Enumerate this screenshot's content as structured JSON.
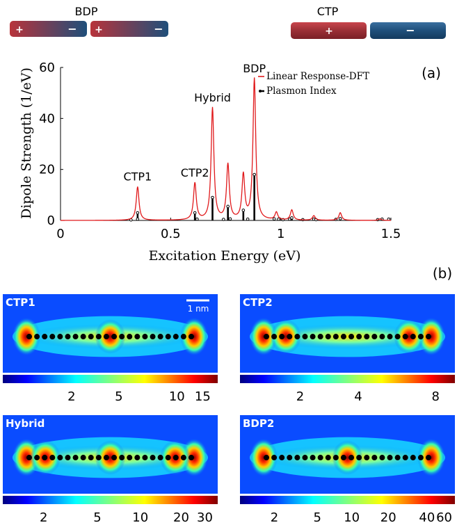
{
  "diagram_labels": {
    "left": "BDP",
    "right": "CTP",
    "plus": "+",
    "minus": "−"
  },
  "panel_labels": {
    "a": "(a)",
    "b": "(b)"
  },
  "chart_data": {
    "type": "line",
    "xlabel": "Excitation Energy (eV)",
    "ylabel": "Dipole Strength (1/eV)",
    "xlim": [
      0,
      1.5
    ],
    "ylim": [
      0,
      60
    ],
    "x_ticks": [
      0,
      0.5,
      1,
      1.5
    ],
    "x_tick_labels": [
      "0",
      "0.5",
      "1",
      "1.5"
    ],
    "y_ticks": [
      0,
      20,
      40,
      60
    ],
    "y_tick_labels": [
      "0",
      "20",
      "40",
      "60"
    ],
    "legend": {
      "placement": "top-right",
      "entries": [
        "Linear Response-DFT",
        "Plasmon Index"
      ]
    },
    "series": [
      {
        "name": "Linear Response-DFT",
        "color": "#e0191b",
        "style": "line",
        "peaks": [
          {
            "x": 0.35,
            "y": 13.2
          },
          {
            "x": 0.61,
            "y": 14.5
          },
          {
            "x": 0.69,
            "y": 44.0
          },
          {
            "x": 0.76,
            "y": 21.7
          },
          {
            "x": 0.83,
            "y": 17.5
          },
          {
            "x": 0.88,
            "y": 55.5
          },
          {
            "x": 0.98,
            "y": 3.0
          },
          {
            "x": 1.05,
            "y": 4.0
          },
          {
            "x": 1.15,
            "y": 1.8
          },
          {
            "x": 1.27,
            "y": 3.0
          },
          {
            "x": 1.45,
            "y": 0.6
          }
        ],
        "peak_width": 0.0075
      },
      {
        "name": "Plasmon Index",
        "color": "#000000",
        "style": "stem",
        "points": [
          {
            "x": 0.32,
            "y": 0.2
          },
          {
            "x": 0.35,
            "y": 3.0
          },
          {
            "x": 0.35,
            "y": 0.5
          },
          {
            "x": 0.61,
            "y": 3.0
          },
          {
            "x": 0.62,
            "y": 0.5
          },
          {
            "x": 0.69,
            "y": 9.0
          },
          {
            "x": 0.74,
            "y": 0.4
          },
          {
            "x": 0.76,
            "y": 5.5
          },
          {
            "x": 0.77,
            "y": 0.6
          },
          {
            "x": 0.83,
            "y": 4.0
          },
          {
            "x": 0.85,
            "y": 0.5
          },
          {
            "x": 0.88,
            "y": 18.0
          },
          {
            "x": 0.97,
            "y": 0.6
          },
          {
            "x": 0.99,
            "y": 0.5
          },
          {
            "x": 1.01,
            "y": 0.3
          },
          {
            "x": 1.04,
            "y": 0.5
          },
          {
            "x": 1.05,
            "y": 1.0
          },
          {
            "x": 1.1,
            "y": 0.3
          },
          {
            "x": 1.15,
            "y": 0.5
          },
          {
            "x": 1.16,
            "y": 0.3
          },
          {
            "x": 1.25,
            "y": 0.4
          },
          {
            "x": 1.27,
            "y": 0.7
          },
          {
            "x": 1.44,
            "y": 0.3
          },
          {
            "x": 1.46,
            "y": 0.5
          },
          {
            "x": 1.49,
            "y": 0.5
          }
        ]
      }
    ],
    "annotations": [
      {
        "text": "CTP1",
        "x": 0.35,
        "y": 14.0
      },
      {
        "text": "CTP2",
        "x": 0.61,
        "y": 15.5
      },
      {
        "text": "Hybrid",
        "x": 0.69,
        "y": 45.0
      },
      {
        "text": "BDP",
        "x": 0.88,
        "y": 56.5
      }
    ]
  },
  "maps": [
    {
      "label": "CTP1",
      "ticks": [
        "2",
        "5",
        "10",
        "15"
      ],
      "tick_pos": [
        0.32,
        0.54,
        0.81,
        0.93
      ],
      "hot": [
        0.5
      ],
      "scale_bar": "1 nm"
    },
    {
      "label": "CTP2",
      "ticks": [
        "2",
        "4",
        "8"
      ],
      "tick_pos": [
        0.28,
        0.55,
        0.91
      ],
      "hot": [
        0.12,
        0.88
      ]
    },
    {
      "label": "Hybrid",
      "ticks": [
        "2",
        "5",
        "10",
        "20",
        "30"
      ],
      "tick_pos": [
        0.19,
        0.44,
        0.64,
        0.83,
        0.94
      ],
      "hot": [
        0.1,
        0.5,
        0.9
      ]
    },
    {
      "label": "BDP2",
      "ticks": [
        "2",
        "5",
        "10",
        "20",
        "40",
        "60"
      ],
      "tick_pos": [
        0.16,
        0.36,
        0.52,
        0.69,
        0.87,
        0.95
      ],
      "hot": [
        0.5
      ]
    }
  ]
}
